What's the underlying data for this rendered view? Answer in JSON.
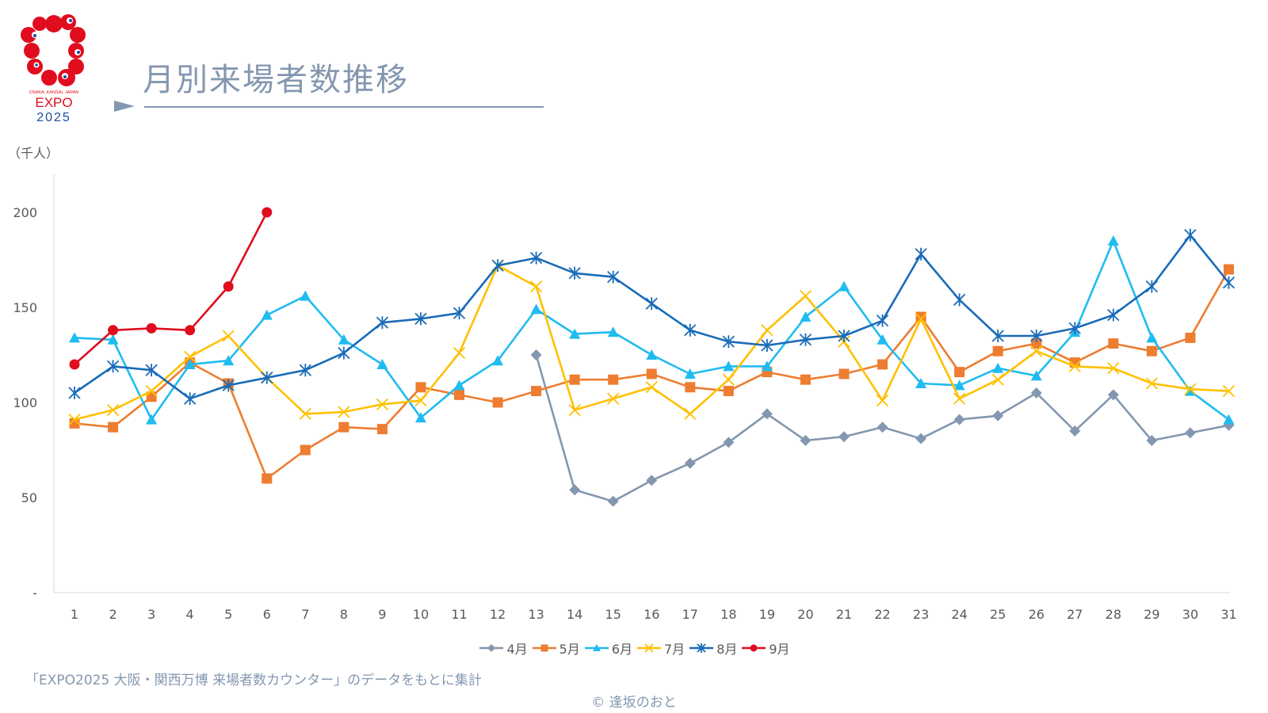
{
  "header": {
    "title": "月別来場者数推移",
    "logo_top_text": "OSAKA, KANSAI, JAPAN",
    "logo_main": "EXPO",
    "logo_year": "2025"
  },
  "chart_data": {
    "type": "line",
    "title": "月別来場者数推移",
    "ylabel": "（千人）",
    "xlabel": "",
    "categories": [
      "1",
      "2",
      "3",
      "4",
      "5",
      "6",
      "7",
      "8",
      "9",
      "10",
      "11",
      "12",
      "13",
      "14",
      "15",
      "16",
      "17",
      "18",
      "19",
      "20",
      "21",
      "22",
      "23",
      "24",
      "25",
      "26",
      "27",
      "28",
      "29",
      "30",
      "31"
    ],
    "ylim": [
      0,
      220
    ],
    "yticks": [
      {
        "value": 0,
        "label": "-"
      },
      {
        "value": 50,
        "label": "50"
      },
      {
        "value": 100,
        "label": "100"
      },
      {
        "value": 150,
        "label": "150"
      },
      {
        "value": 200,
        "label": "200"
      }
    ],
    "grid": false,
    "legend_position": "bottom",
    "series": [
      {
        "name": "4月",
        "color": "#8497b0",
        "marker": "diamond",
        "values": [
          null,
          null,
          null,
          null,
          null,
          null,
          null,
          null,
          null,
          null,
          null,
          null,
          125,
          54,
          48,
          59,
          68,
          79,
          94,
          80,
          82,
          87,
          81,
          91,
          93,
          105,
          85,
          104,
          80,
          84,
          88
        ]
      },
      {
        "name": "5月",
        "color": "#ed7d31",
        "marker": "square",
        "values": [
          89,
          87,
          103,
          121,
          110,
          60,
          75,
          87,
          86,
          108,
          104,
          100,
          106,
          112,
          112,
          115,
          108,
          106,
          116,
          112,
          115,
          120,
          145,
          116,
          127,
          131,
          121,
          131,
          127,
          134,
          170
        ]
      },
      {
        "name": "6月",
        "color": "#1fbcf0",
        "marker": "triangle",
        "values": [
          134,
          133,
          91,
          120,
          122,
          146,
          156,
          133,
          120,
          92,
          109,
          122,
          149,
          136,
          137,
          125,
          115,
          119,
          119,
          145,
          161,
          133,
          110,
          109,
          118,
          114,
          137,
          185,
          134,
          106,
          91
        ]
      },
      {
        "name": "7月",
        "color": "#ffc000",
        "marker": "x",
        "values": [
          91,
          96,
          106,
          124,
          135,
          113,
          94,
          95,
          99,
          101,
          126,
          172,
          161,
          96,
          102,
          108,
          94,
          112,
          138,
          156,
          132,
          101,
          144,
          102,
          112,
          127,
          119,
          118,
          110,
          107,
          106
        ]
      },
      {
        "name": "8月",
        "color": "#1a6bb8",
        "marker": "star",
        "values": [
          105,
          119,
          117,
          102,
          109,
          113,
          117,
          126,
          142,
          144,
          147,
          172,
          176,
          168,
          166,
          152,
          138,
          132,
          130,
          133,
          135,
          143,
          178,
          154,
          135,
          135,
          139,
          146,
          161,
          188,
          163
        ]
      },
      {
        "name": "9月",
        "color": "#e00d1e",
        "marker": "circle",
        "values": [
          120,
          138,
          139,
          138,
          161,
          200,
          null,
          null,
          null,
          null,
          null,
          null,
          null,
          null,
          null,
          null,
          null,
          null,
          null,
          null,
          null,
          null,
          null,
          null,
          null,
          null,
          null,
          null,
          null,
          null,
          null
        ]
      }
    ]
  },
  "footer": {
    "source": "「EXPO2025 大阪・関西万博 来場者数カウンター」のデータをもとに集計",
    "credit": "© 逢坂のおと"
  }
}
